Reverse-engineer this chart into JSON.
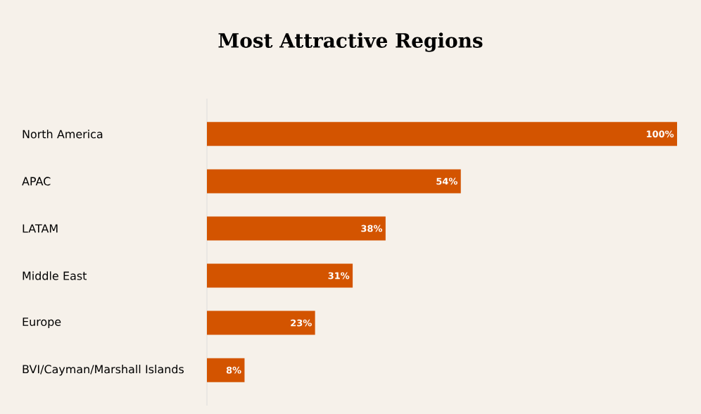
{
  "chart_data": {
    "type": "bar",
    "orientation": "horizontal",
    "title": "Most Attractive Regions",
    "categories": [
      "North America",
      "APAC",
      "LATAM",
      "Middle East",
      "Europe",
      "BVI/Cayman/Marshall Islands"
    ],
    "values": [
      100,
      54,
      38,
      31,
      23,
      8
    ],
    "value_labels": [
      "100%",
      "54%",
      "38%",
      "31%",
      "23%",
      "8%"
    ],
    "color": "#d35400"
  }
}
